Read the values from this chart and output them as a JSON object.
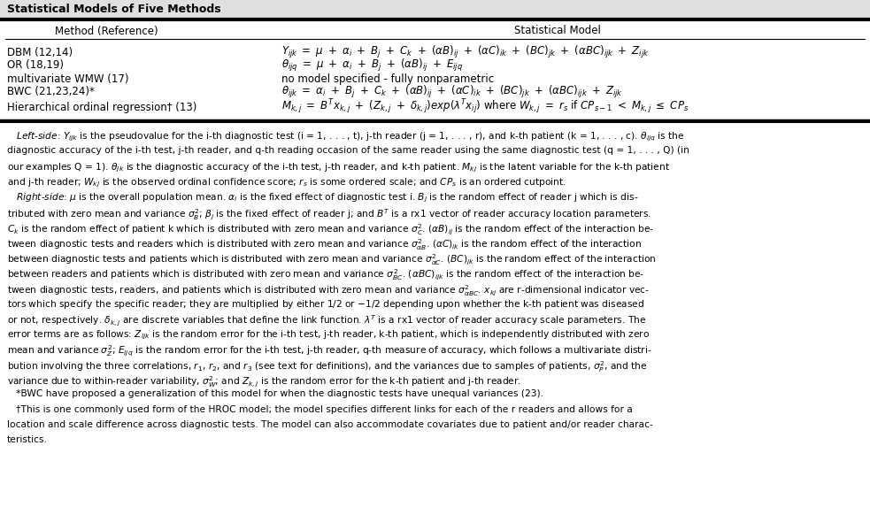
{
  "title": "Statistical Models of Five Methods",
  "col1_header": "Method (Reference)",
  "col2_header": "Statistical Model",
  "methods": [
    "DBM (12,14)",
    "OR (18,19)",
    "multivariate WMW (17)",
    "BWC (21,23,24)*",
    "Hierarchical ordinal regression† (13)"
  ],
  "bg_color": "#ffffff",
  "text_color": "#000000",
  "fig_width": 9.83,
  "fig_height": 5.73
}
